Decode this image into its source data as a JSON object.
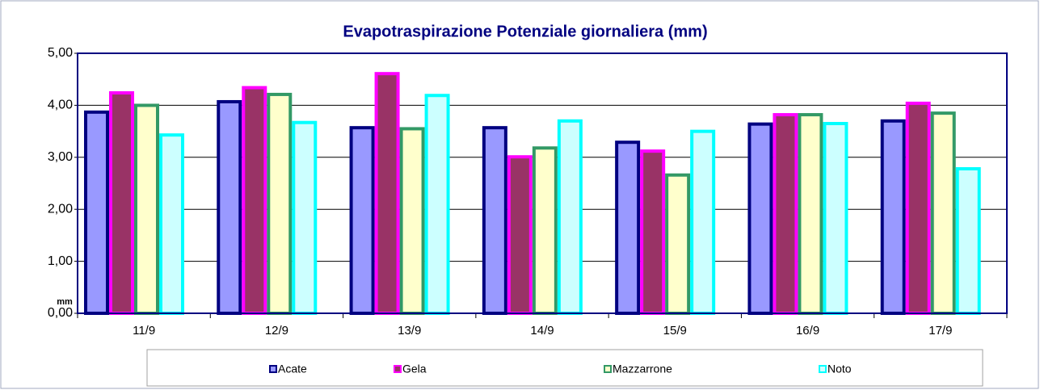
{
  "chart_data": {
    "type": "bar",
    "title": "Evapotraspirazione Potenziale giornaliera (mm)",
    "y_label": "mm",
    "categories": [
      "11/9",
      "12/9",
      "13/9",
      "14/9",
      "15/9",
      "16/9",
      "17/9"
    ],
    "series": [
      {
        "name": "Acate",
        "color": "#9999ff",
        "edge_color": "#000080",
        "values": [
          3.9,
          4.1,
          3.6,
          3.6,
          3.32,
          3.67,
          3.73
        ]
      },
      {
        "name": "Gela",
        "color": "#993366",
        "edge_color": "#ff00ff",
        "values": [
          4.27,
          4.37,
          4.64,
          3.04,
          3.15,
          3.85,
          4.07
        ]
      },
      {
        "name": "Mazzarrone",
        "color": "#ffffcc",
        "edge_color": "#339966",
        "values": [
          4.03,
          4.24,
          3.58,
          3.21,
          2.69,
          3.85,
          3.88
        ]
      },
      {
        "name": "Noto",
        "color": "#ccffff",
        "edge_color": "#00ffff",
        "values": [
          3.46,
          3.7,
          4.22,
          3.73,
          3.53,
          3.68,
          2.81
        ]
      }
    ],
    "ylim": [
      0,
      5
    ],
    "yticks": [
      {
        "value": 0,
        "label": "0,00"
      },
      {
        "value": 1,
        "label": "1,00"
      },
      {
        "value": 2,
        "label": "2,00"
      },
      {
        "value": 3,
        "label": "3,00"
      },
      {
        "value": 4,
        "label": "4,00"
      },
      {
        "value": 5,
        "label": "5,00"
      }
    ],
    "grid": true,
    "legend": "bottom"
  }
}
